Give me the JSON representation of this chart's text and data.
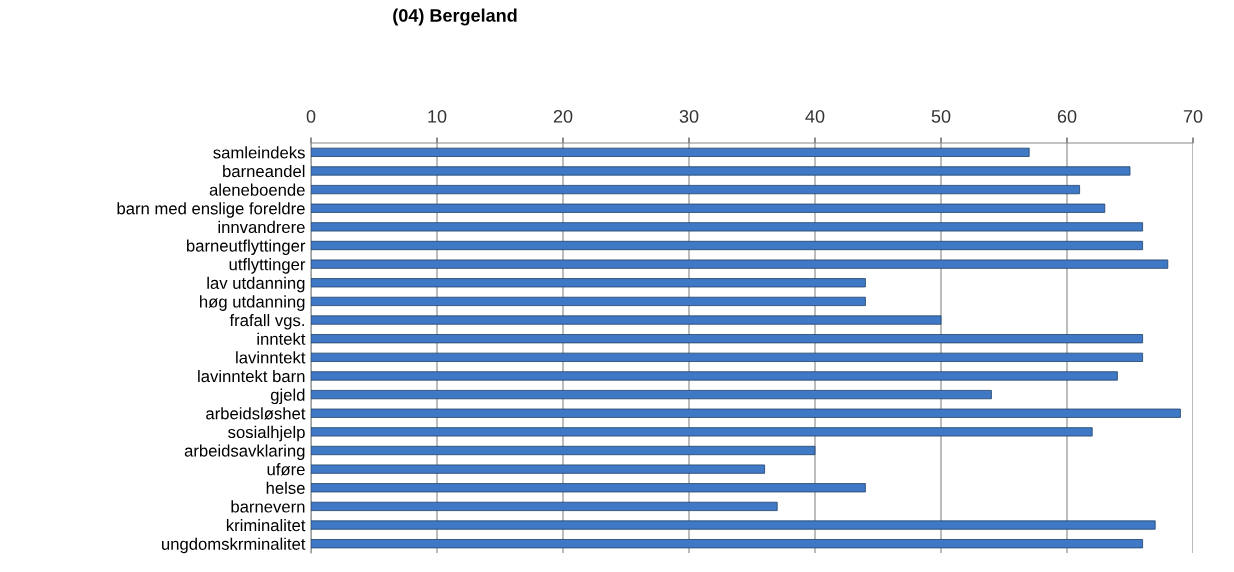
{
  "chart_data": {
    "type": "bar",
    "orientation": "horizontal",
    "title": "(04) Bergeland",
    "categories": [
      "samleindeks",
      "barneandel",
      "aleneboende",
      "barn med enslige foreldre",
      "innvandrere",
      "barneutflyttinger",
      "utflyttinger",
      "lav utdanning",
      "høg utdanning",
      "frafall vgs.",
      "inntekt",
      "lavinntekt",
      "lavinntekt barn",
      "gjeld",
      "arbeidsløshet",
      "sosialhjelp",
      "arbeidsavklaring",
      "uføre",
      "helse",
      "barnevern",
      "kriminalitet",
      "ungdomskrminalitet"
    ],
    "values": [
      57,
      65,
      61,
      63,
      66,
      66,
      68,
      44,
      44,
      50,
      66,
      66,
      64,
      54,
      69,
      62,
      40,
      36,
      44,
      37,
      67,
      66
    ],
    "color": "#3f78c4",
    "xlim": [
      0,
      70
    ],
    "xticks": [
      0,
      10,
      20,
      30,
      40,
      50,
      60,
      70
    ],
    "grid": "x",
    "legend": false
  }
}
